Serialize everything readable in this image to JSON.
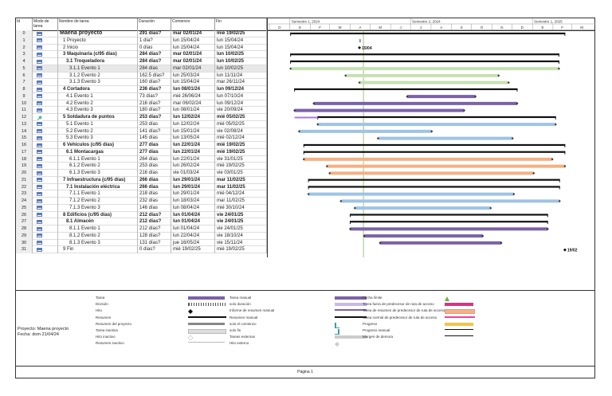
{
  "columns": {
    "id": "Id",
    "mode": "Modo de tarea",
    "name": "Nombre de tarea",
    "duration": "Duración",
    "start": "Comienzo",
    "end": "Fin"
  },
  "timeline": {
    "semesters": [
      {
        "label": "Semestre 1, 2024"
      },
      {
        "label": "Semestre 2, 2024"
      },
      {
        "label": "Semestre 1, 2025"
      }
    ],
    "months": [
      "D",
      "E",
      "F",
      "M",
      "A",
      "M",
      "J",
      "J",
      "A",
      "S",
      "O",
      "N",
      "D",
      "E",
      "F",
      "M"
    ]
  },
  "tasks": [
    {
      "id": "0",
      "name": "Maena proyecto",
      "dur": "291 días?",
      "start": "mar 02/01/24",
      "end": "mié 19/02/25",
      "level": 0,
      "bold": true,
      "bar_start": "2024-01-02",
      "bar_end": "2025-02-19",
      "kind": "summary"
    },
    {
      "id": "1",
      "name": "1 Proyecto",
      "dur": "1 día?",
      "start": "lun 15/04/24",
      "end": "lun 15/04/24",
      "level": 1,
      "bar_start": "2024-04-15",
      "bar_end": "2024-04-16",
      "kind": "task"
    },
    {
      "id": "2",
      "name": "2 Inicio",
      "dur": "0 días",
      "start": "lun 15/04/24",
      "end": "lun 15/04/24",
      "level": 1,
      "bar_start": "2024-04-15",
      "bar_end": "2024-04-15",
      "kind": "milestone",
      "label": "15/04"
    },
    {
      "id": "3",
      "name": "3 Maquinaria (c/95 días)",
      "dur": "284 días?",
      "start": "mar 02/01/24",
      "end": "lun 10/02/25",
      "level": 1,
      "bold": true,
      "bar_start": "2024-01-02",
      "bar_end": "2025-02-10",
      "kind": "summary"
    },
    {
      "id": "4",
      "name": "3.1 Troqueladora",
      "dur": "284 días?",
      "start": "mar 02/01/24",
      "end": "lun 10/02/25",
      "level": 2,
      "bold": true,
      "bar_start": "2024-01-02",
      "bar_end": "2025-02-10",
      "kind": "summary"
    },
    {
      "id": "5",
      "name": "3.1.1 Evento 1",
      "dur": "284 días",
      "start": "mar 02/01/24",
      "end": "lun 10/02/25",
      "level": 3,
      "sel": true,
      "bar_start": "2024-01-02",
      "bar_end": "2025-02-10",
      "kind": "light-green"
    },
    {
      "id": "6",
      "name": "3.1.2 Evento 2",
      "dur": "162.5 días?",
      "start": "lun 25/03/24",
      "end": "lun 11/11/24",
      "level": 3,
      "bar_start": "2024-03-25",
      "bar_end": "2024-11-11",
      "kind": "light-green"
    },
    {
      "id": "7",
      "name": "3.1.3 Evento 3",
      "dur": "160 días?",
      "start": "lun 15/04/24",
      "end": "mar 26/11/24",
      "level": 3,
      "bar_start": "2024-04-15",
      "bar_end": "2024-11-26",
      "kind": "light-green"
    },
    {
      "id": "8",
      "name": "4 Cortadora",
      "dur": "236 días?",
      "start": "lun 08/01/24",
      "end": "lun 09/12/24",
      "level": 1,
      "bold": true,
      "bar_start": "2024-01-08",
      "bar_end": "2024-12-09",
      "kind": "summary"
    },
    {
      "id": "9",
      "name": "4.1 Evento 1",
      "dur": "73 días?",
      "start": "mié 26/06/24",
      "end": "lun 07/10/24",
      "level": 2,
      "bar_start": "2024-06-26",
      "bar_end": "2024-10-07",
      "kind": "purple"
    },
    {
      "id": "10",
      "name": "4.2 Evento 2",
      "dur": "216 días?",
      "start": "mar 06/02/24",
      "end": "lun 09/12/24",
      "level": 2,
      "bar_start": "2024-02-06",
      "bar_end": "2024-12-09",
      "kind": "purple"
    },
    {
      "id": "11",
      "name": "4.3 Evento 3",
      "dur": "180 días?",
      "start": "lun 08/01/24",
      "end": "vie 20/09/24",
      "level": 2,
      "bar_start": "2024-01-08",
      "bar_end": "2024-09-20",
      "kind": "purple"
    },
    {
      "id": "12",
      "name": "5 Soldadura de puntos",
      "dur": "253 días?",
      "start": "lun 12/02/24",
      "end": "mié 05/02/25",
      "level": 1,
      "bold": true,
      "pin": true,
      "bar_start": "2024-02-12",
      "bar_end": "2025-02-05",
      "kind": "summary"
    },
    {
      "id": "13",
      "name": "5.1 Evento 1",
      "dur": "253 días",
      "start": "lun 12/02/24",
      "end": "mié 05/02/25",
      "level": 2,
      "bar_start": "2024-02-12",
      "bar_end": "2025-02-05",
      "kind": "light-blue"
    },
    {
      "id": "14",
      "name": "5.2 Evento 2",
      "dur": "141 días?",
      "start": "lun 15/01/24",
      "end": "vie 02/08/24",
      "level": 2,
      "bar_start": "2024-01-15",
      "bar_end": "2024-08-02",
      "kind": "light-blue"
    },
    {
      "id": "15",
      "name": "5.3 Evento 3",
      "dur": "145 días",
      "start": "lun 13/05/24",
      "end": "mié 02/12/24",
      "level": 2,
      "bar_start": "2024-05-13",
      "bar_end": "2024-12-02",
      "kind": "light-blue"
    },
    {
      "id": "16",
      "name": "6 Vehículos (c/95 días)",
      "dur": "277 días",
      "start": "lun 22/01/24",
      "end": "mié 19/02/25",
      "level": 1,
      "bold": true,
      "bar_start": "2024-01-22",
      "bar_end": "2025-02-19",
      "kind": "summary"
    },
    {
      "id": "17",
      "name": "6.1 Montacargas",
      "dur": "277 días",
      "start": "lun 22/01/24",
      "end": "mié 19/02/25",
      "level": 2,
      "bold": true,
      "bar_start": "2024-01-22",
      "bar_end": "2025-02-19",
      "kind": "summary"
    },
    {
      "id": "18",
      "name": "6.1.1 Evento 1",
      "dur": "264 días",
      "start": "lun 22/01/24",
      "end": "vie 31/01/25",
      "level": 3,
      "bar_start": "2024-01-22",
      "bar_end": "2025-01-31",
      "kind": "orange"
    },
    {
      "id": "19",
      "name": "6.1.2 Evento 2",
      "dur": "253 días",
      "start": "lun 26/02/24",
      "end": "mié 19/02/25",
      "level": 3,
      "bar_start": "2024-02-26",
      "bar_end": "2025-02-19",
      "kind": "orange"
    },
    {
      "id": "20",
      "name": "6.1.3 Evento 3",
      "dur": "216 días",
      "start": "vie 01/03/24",
      "end": "vie 03/01/25",
      "level": 3,
      "bar_start": "2024-03-01",
      "bar_end": "2025-01-03",
      "kind": "orange"
    },
    {
      "id": "21",
      "name": "7 Infraestructura (c/95 días)",
      "dur": "266 días",
      "start": "lun 29/01/24",
      "end": "mar 11/02/25",
      "level": 1,
      "bold": true,
      "bar_start": "2024-01-29",
      "bar_end": "2025-02-11",
      "kind": "summary"
    },
    {
      "id": "22",
      "name": "7.1 Instalación eléctrica",
      "dur": "266 días",
      "start": "lun 29/01/24",
      "end": "mar 11/02/25",
      "level": 2,
      "bold": true,
      "bar_start": "2024-01-29",
      "bar_end": "2025-02-11",
      "kind": "summary"
    },
    {
      "id": "23",
      "name": "7.1.1 Evento 1",
      "dur": "218 días",
      "start": "lun 29/01/24",
      "end": "mié 04/12/24",
      "level": 3,
      "bar_start": "2024-01-29",
      "bar_end": "2024-12-04",
      "kind": "light-blue"
    },
    {
      "id": "24",
      "name": "7.1.2 Evento 2",
      "dur": "232 días",
      "start": "lun 18/03/24",
      "end": "mar 11/02/25",
      "level": 3,
      "bar_start": "2024-03-18",
      "bar_end": "2025-02-11",
      "kind": "light-blue"
    },
    {
      "id": "25",
      "name": "7.1.3 Evento 3",
      "dur": "146 días",
      "start": "lun 08/04/24",
      "end": "mié 30/10/24",
      "level": 3,
      "bar_start": "2024-04-08",
      "bar_end": "2024-10-30",
      "kind": "light-blue"
    },
    {
      "id": "26",
      "name": "8 Edificios (c/95 días)",
      "dur": "212 días?",
      "start": "lun 01/04/24",
      "end": "vie 24/01/25",
      "level": 1,
      "bold": true,
      "bar_start": "2024-04-01",
      "bar_end": "2025-01-24",
      "kind": "summary"
    },
    {
      "id": "27",
      "name": "8.1 Almacén",
      "dur": "212 días?",
      "start": "lun 01/04/24",
      "end": "vie 24/01/25",
      "level": 2,
      "bold": true,
      "bar_start": "2024-04-01",
      "bar_end": "2025-01-24",
      "kind": "summary"
    },
    {
      "id": "28",
      "name": "8.1.1 Evento 1",
      "dur": "212 días?",
      "start": "lun 01/04/24",
      "end": "vie 24/01/25",
      "level": 3,
      "bar_start": "2024-04-01",
      "bar_end": "2025-01-24",
      "kind": "purple"
    },
    {
      "id": "29",
      "name": "8.1.2 Evento 2",
      "dur": "128 días?",
      "start": "lun 22/04/24",
      "end": "vie 18/10/24",
      "level": 3,
      "bar_start": "2024-04-22",
      "bar_end": "2024-10-18",
      "kind": "purple"
    },
    {
      "id": "30",
      "name": "8.1.3 Evento 3",
      "dur": "131 días?",
      "start": "jue 16/05/24",
      "end": "vie 15/11/24",
      "level": 3,
      "bar_start": "2024-05-16",
      "bar_end": "2024-11-15",
      "kind": "purple"
    },
    {
      "id": "31",
      "name": "9 Fin",
      "dur": "0 días?",
      "start": "mié 19/02/25",
      "end": "mié 19/02/25",
      "level": 1,
      "bar_start": "2025-02-19",
      "bar_end": "2025-02-19",
      "kind": "milestone",
      "label": "19/02"
    }
  ],
  "legend": {
    "project_label": "Proyecto: Maena proyecto",
    "date_label": "Fecha: dom 21/04/24",
    "col1": [
      "Tarea",
      "División",
      "Hito",
      "Resumen",
      "Resumen del proyecto",
      "Tarea inactiva",
      "Hito inactivo",
      "Resumen inactivo"
    ],
    "col2": [
      "Tarea manual",
      "solo duración",
      "Informe de resumen manual",
      "Resumen manual",
      "solo el comienzo",
      "solo fin",
      "Tareas externas",
      "Hito externo"
    ],
    "col3": [
      "Fecha límite",
      "Tarea fuera de predecesor de ruta de acceso",
      "Tarea de resumen de predecesor de ruta de acceso",
      "Tarea normal de predecesor de ruta de acceso",
      "Progreso",
      "Progreso manual",
      "Margen de demora"
    ]
  },
  "footer": "Página 1",
  "colors": {
    "purple": "#7a62a8",
    "light_green": "#c6e0b4",
    "light_blue": "#9fc3e4",
    "orange": "#f4b183",
    "today": "#70ad47",
    "pink": "#d63384"
  }
}
